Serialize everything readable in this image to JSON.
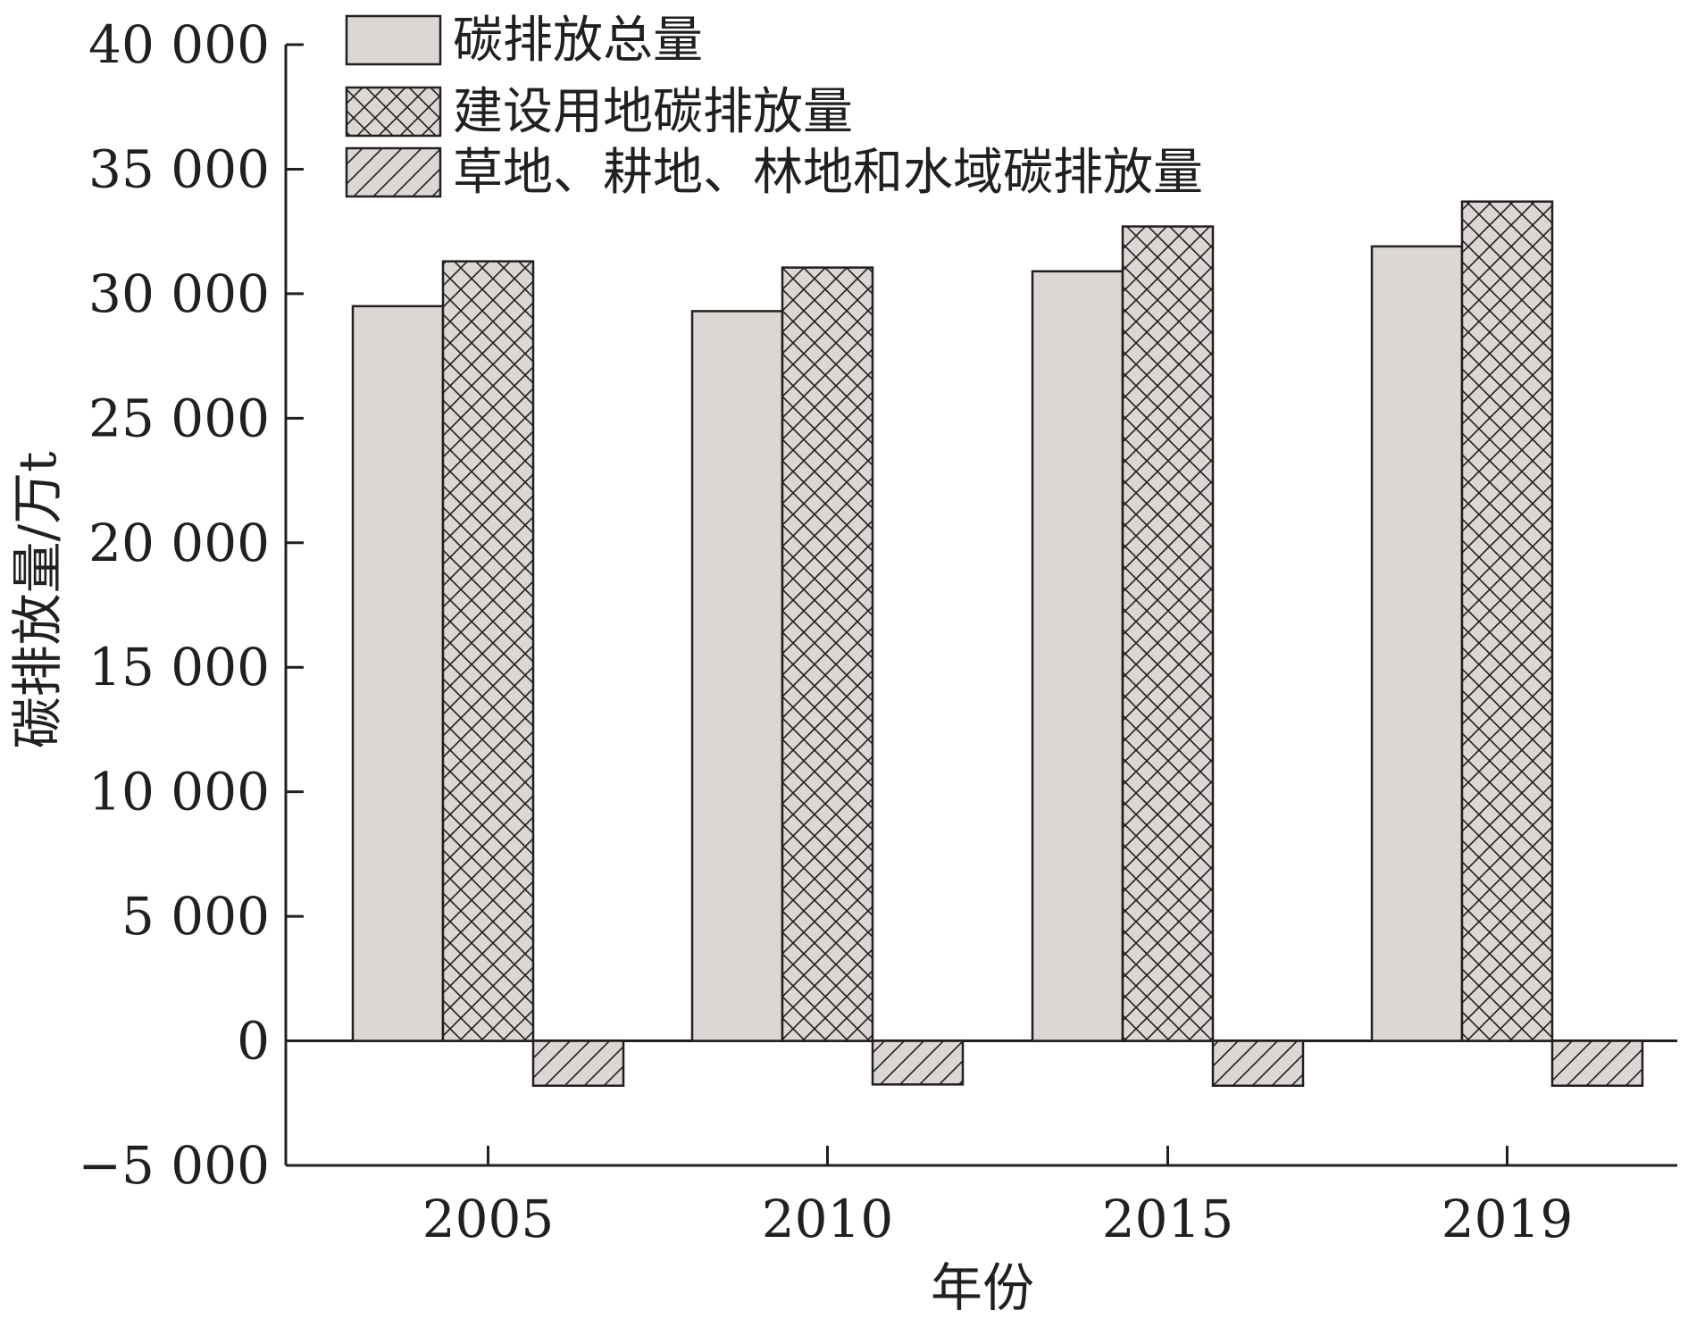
{
  "chart_data": {
    "type": "bar",
    "xlabel": "年份",
    "ylabel": "碳排放量/万t",
    "categories": [
      "2005",
      "2010",
      "2015",
      "2019"
    ],
    "ylim": [
      -5000,
      40000
    ],
    "yticks": [
      -5000,
      0,
      5000,
      10000,
      15000,
      20000,
      25000,
      30000,
      35000,
      40000
    ],
    "ytick_labels": [
      "−5 000",
      "0",
      "5 000",
      "10 000",
      "15 000",
      "20 000",
      "25 000",
      "30 000",
      "35 000",
      "40 000"
    ],
    "legend_position": "top-left",
    "grid": false,
    "series": [
      {
        "name": "碳排放总量",
        "values": [
          29500,
          29300,
          30900,
          31900
        ],
        "fill": "#dcd6d4",
        "pattern": "solid"
      },
      {
        "name": "建设用地碳排放量",
        "values": [
          31300,
          31050,
          32700,
          33700
        ],
        "fill": "#dcd6d4",
        "pattern": "crosshatch"
      },
      {
        "name": "草地、耕地、林地和水域碳排放量",
        "values": [
          -1800,
          -1750,
          -1800,
          -1800
        ],
        "fill": "#dcd6d4",
        "pattern": "diagonal"
      }
    ],
    "colors": {
      "axis": "#231f20",
      "bar_fill": "#dcd6d4"
    }
  }
}
